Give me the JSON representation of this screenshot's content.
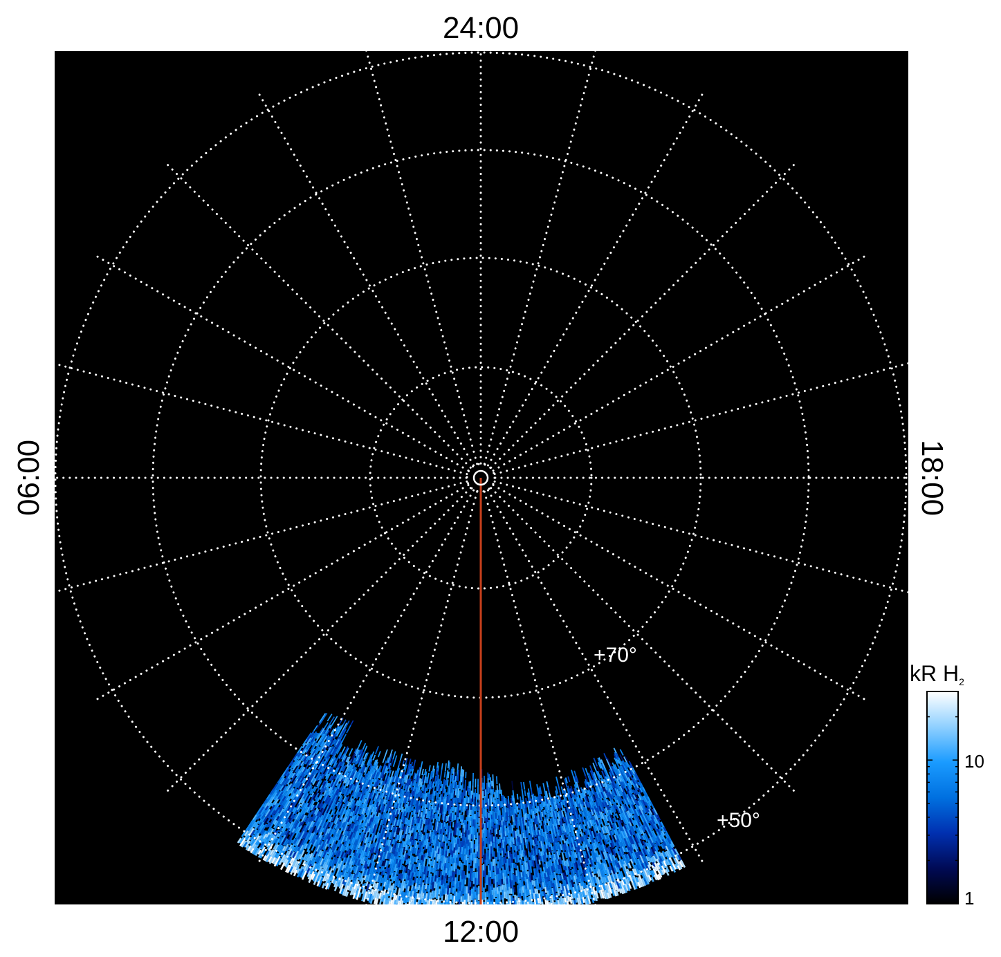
{
  "chart_data": {
    "type": "heatmap",
    "projection": "polar",
    "background": "#000000",
    "local_time_labels": {
      "top": "24:00",
      "bottom": "12:00",
      "left": "06:00",
      "right": "18:00"
    },
    "latitude_circles": [
      90,
      80,
      70,
      60,
      50
    ],
    "latitude_labels": [
      "+70°",
      "+50°"
    ],
    "meridian_step_hours": 1,
    "grid": true,
    "grid_style": "dotted white",
    "highlight_meridian": {
      "local_time": "12:00",
      "color": "#c8401c"
    },
    "emission_region": {
      "local_time_range": [
        "~09:45",
        "~13:50"
      ],
      "latitude_range": [
        50,
        62
      ],
      "description_values": "auroral H2 brightness"
    },
    "colorbar": {
      "title": "kR H",
      "title_subscript": "2",
      "scale": "log",
      "range": [
        1,
        30
      ],
      "tick_labels": [
        "10",
        "1"
      ],
      "ticks": [
        10,
        1
      ],
      "colors": [
        "#000000",
        "#000a55",
        "#0030b0",
        "#0070e0",
        "#1a9bff",
        "#8fd0ff",
        "#ffffff"
      ],
      "placement": "bottom-right"
    }
  }
}
